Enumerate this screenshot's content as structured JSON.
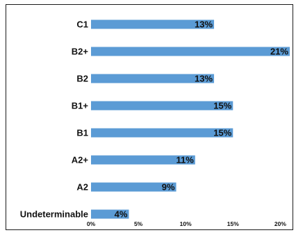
{
  "chart_data": {
    "type": "bar",
    "orientation": "horizontal",
    "categories": [
      "C1",
      "B2+",
      "B2",
      "B1+",
      "B1",
      "A2+",
      "A2",
      "Undeterminable"
    ],
    "values": [
      13,
      21,
      13,
      15,
      15,
      11,
      9,
      4
    ],
    "data_labels": [
      "13%",
      "21%",
      "13%",
      "15%",
      "15%",
      "11%",
      "9%",
      "4%"
    ],
    "x_ticks": [
      0,
      5,
      10,
      15,
      20
    ],
    "x_tick_labels": [
      "0%",
      "5%",
      "10%",
      "15%",
      "20%"
    ],
    "xlim": [
      0,
      21
    ],
    "title": "",
    "xlabel": "",
    "ylabel": "",
    "grid": false,
    "legend": "none",
    "bar_color": "#5b9bd5"
  }
}
